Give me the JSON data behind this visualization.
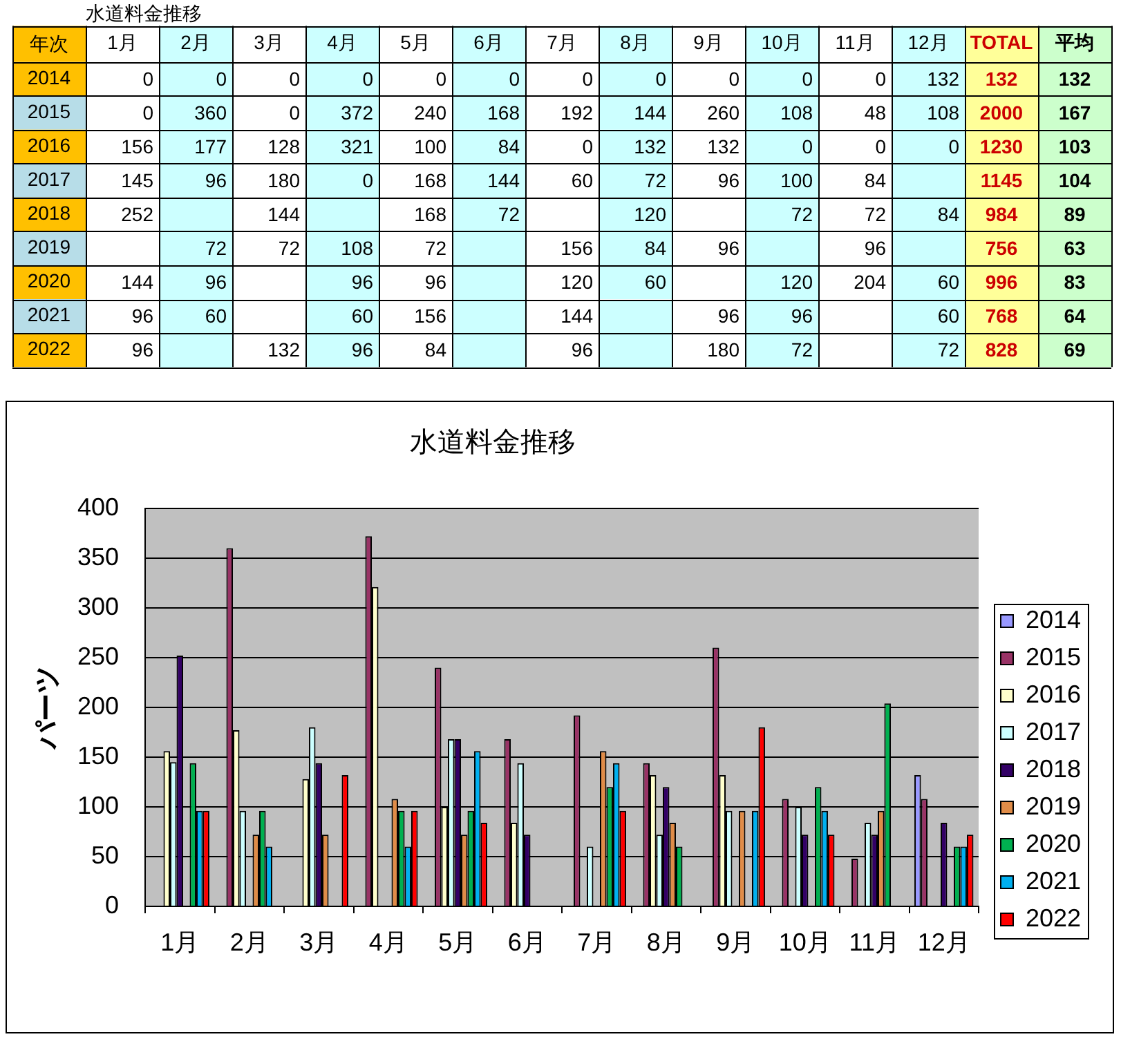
{
  "chart_data": [
    {
      "type": "heatmap",
      "title": "水道料金推移",
      "ylabel": "年次",
      "data_labels": true,
      "categories": [
        "1月",
        "2月",
        "3月",
        "4月",
        "5月",
        "6月",
        "7月",
        "8月",
        "9月",
        "10月",
        "11月",
        "12月",
        "TOTAL",
        "平均"
      ],
      "y_categories": [
        "2014",
        "2015",
        "2016",
        "2017",
        "2018",
        "2019",
        "2020",
        "2021",
        "2022"
      ],
      "cells": [
        [
          0,
          0,
          0,
          0,
          0,
          0,
          0,
          0,
          0,
          0,
          0,
          132,
          132,
          132
        ],
        [
          0,
          360,
          0,
          372,
          240,
          168,
          192,
          144,
          260,
          108,
          48,
          108,
          2000,
          167
        ],
        [
          156,
          177,
          128,
          321,
          100,
          84,
          0,
          132,
          132,
          0,
          0,
          0,
          1230,
          103
        ],
        [
          145,
          96,
          180,
          0,
          168,
          144,
          60,
          72,
          96,
          100,
          84,
          null,
          1145,
          104
        ],
        [
          252,
          null,
          144,
          null,
          168,
          72,
          null,
          120,
          null,
          72,
          72,
          84,
          984,
          89
        ],
        [
          null,
          72,
          72,
          108,
          72,
          null,
          156,
          84,
          96,
          null,
          96,
          null,
          756,
          63
        ],
        [
          144,
          96,
          null,
          96,
          96,
          null,
          120,
          60,
          null,
          120,
          204,
          60,
          996,
          83
        ],
        [
          96,
          60,
          null,
          60,
          156,
          null,
          144,
          null,
          96,
          96,
          null,
          60,
          768,
          64
        ],
        [
          96,
          null,
          132,
          96,
          84,
          null,
          96,
          null,
          180,
          72,
          null,
          72,
          828,
          69
        ]
      ]
    },
    {
      "type": "bar",
      "title": "水道料金推移",
      "ylabel": "パーツ",
      "categories": [
        "1月",
        "2月",
        "3月",
        "4月",
        "5月",
        "6月",
        "7月",
        "8月",
        "9月",
        "10月",
        "11月",
        "12月"
      ],
      "series": [
        {
          "name": "2014",
          "color": "#9999ff",
          "values": [
            0,
            0,
            0,
            0,
            0,
            0,
            0,
            0,
            0,
            0,
            0,
            132
          ]
        },
        {
          "name": "2015",
          "color": "#993366",
          "values": [
            0,
            360,
            0,
            372,
            240,
            168,
            192,
            144,
            260,
            108,
            48,
            108
          ]
        },
        {
          "name": "2016",
          "color": "#ffffcc",
          "values": [
            156,
            177,
            128,
            321,
            100,
            84,
            0,
            132,
            132,
            0,
            0,
            0
          ]
        },
        {
          "name": "2017",
          "color": "#ccffff",
          "values": [
            145,
            96,
            180,
            0,
            168,
            144,
            60,
            72,
            96,
            100,
            84,
            null
          ]
        },
        {
          "name": "2018",
          "color": "#330066",
          "values": [
            252,
            null,
            144,
            null,
            168,
            72,
            null,
            120,
            null,
            72,
            72,
            84
          ]
        },
        {
          "name": "2019",
          "color": "#e08c48",
          "values": [
            null,
            72,
            72,
            108,
            72,
            null,
            156,
            84,
            96,
            null,
            96,
            null
          ]
        },
        {
          "name": "2020",
          "color": "#00b050",
          "values": [
            144,
            96,
            null,
            96,
            96,
            null,
            120,
            60,
            null,
            120,
            204,
            60
          ]
        },
        {
          "name": "2021",
          "color": "#00b0f0",
          "values": [
            96,
            60,
            null,
            60,
            156,
            null,
            144,
            null,
            96,
            96,
            null,
            60
          ]
        },
        {
          "name": "2022",
          "color": "#ff0000",
          "values": [
            96,
            null,
            132,
            96,
            84,
            null,
            96,
            null,
            180,
            72,
            null,
            72
          ]
        }
      ],
      "ylim": [
        0,
        400
      ],
      "yticks": [
        0,
        50,
        100,
        150,
        200,
        250,
        300,
        350,
        400
      ],
      "grid": "y",
      "legend": "right"
    }
  ]
}
